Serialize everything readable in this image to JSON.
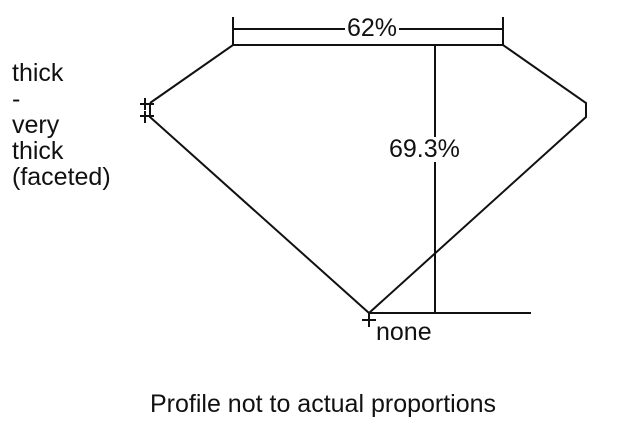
{
  "diagram": {
    "girdle_thickness_lines": [
      "thick",
      "-",
      "very",
      "thick",
      "(faceted)"
    ],
    "table_percentage": "62%",
    "total_depth_percentage": "69.3%",
    "culet_size": "none",
    "note": "Profile not to actual proportions",
    "line_color": "#111111"
  }
}
